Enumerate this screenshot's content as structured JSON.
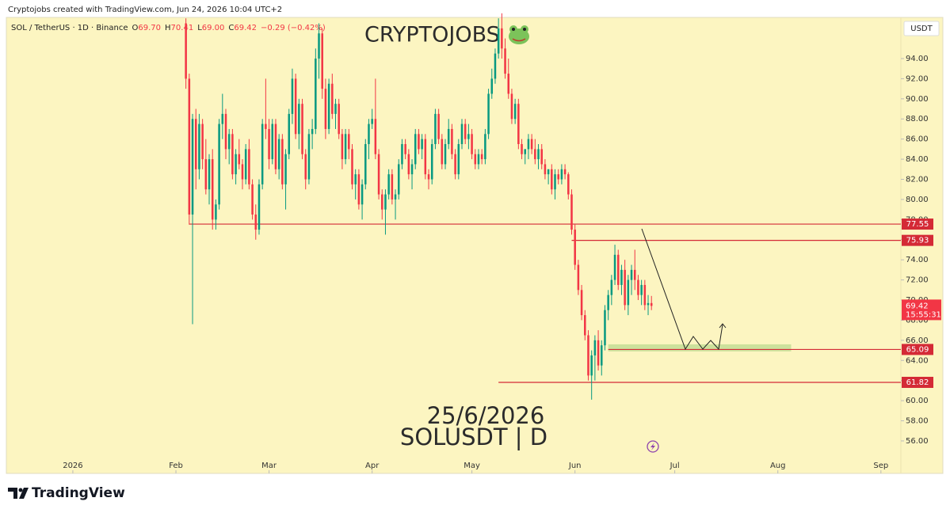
{
  "chart_data": {
    "type": "candlestick",
    "header": "Cryptojobs created with TradingView.com, Jun 24, 2026 10:04 UTC+2",
    "legend": {
      "symbol": "SOL / TetherUS · 1D · Binance",
      "fields": [
        {
          "key": "O",
          "value": "69.70"
        },
        {
          "key": "H",
          "value": "70.41"
        },
        {
          "key": "L",
          "value": "69.00"
        },
        {
          "key": "C",
          "value": "69.42"
        }
      ],
      "change": "−0.29 (−0.42%)"
    },
    "watermark": "CRYPTOJOBS",
    "date_text": "25/6/2026",
    "symbol_text": "SOLUSDT | D",
    "currency": "USDT",
    "footer": "TradingView",
    "up_color": "#089981",
    "down_color": "#f23645",
    "level_color": "#d42a36",
    "zone_color": "#b9d98c",
    "xlim": [
      "2025-12-12",
      "2026-09-07"
    ],
    "xticks": [
      {
        "value": "2026-01-01",
        "label": "2026"
      },
      {
        "value": "2026-02-01",
        "label": "Feb"
      },
      {
        "value": "2026-03-01",
        "label": "Mar"
      },
      {
        "value": "2026-04-01",
        "label": "Apr"
      },
      {
        "value": "2026-05-01",
        "label": "May"
      },
      {
        "value": "2026-06-01",
        "label": "Jun"
      },
      {
        "value": "2026-07-01",
        "label": "Jul"
      },
      {
        "value": "2026-08-01",
        "label": "Aug"
      },
      {
        "value": "2026-09-01",
        "label": "Sep"
      }
    ],
    "ylim": [
      52.77,
      98.09
    ],
    "yticks": [
      {
        "value": 56,
        "label": "56.00"
      },
      {
        "value": 58,
        "label": "58.00"
      },
      {
        "value": 60,
        "label": "60.00"
      },
      {
        "value": 62,
        "label": "62.00"
      },
      {
        "value": 64,
        "label": "64.00"
      },
      {
        "value": 66,
        "label": "66.00"
      },
      {
        "value": 68,
        "label": "68.00"
      },
      {
        "value": 70,
        "label": "70.00"
      },
      {
        "value": 72,
        "label": "72.00"
      },
      {
        "value": 74,
        "label": "74.00"
      },
      {
        "value": 76,
        "label": "76.00"
      },
      {
        "value": 78,
        "label": "78.00"
      },
      {
        "value": 80,
        "label": "80.00"
      },
      {
        "value": 82,
        "label": "82.00"
      },
      {
        "value": 84,
        "label": "84.00"
      },
      {
        "value": 86,
        "label": "86.00"
      },
      {
        "value": 88,
        "label": "88.00"
      },
      {
        "value": 90,
        "label": "90.00"
      },
      {
        "value": 92,
        "label": "92.00"
      },
      {
        "value": 94,
        "label": "94.00"
      }
    ],
    "levels": [
      {
        "value": 77.55,
        "from": "2026-02-05"
      },
      {
        "value": 75.93,
        "from": "2026-05-31"
      },
      {
        "value": 65.09,
        "from": "2026-06-11"
      },
      {
        "value": 61.82,
        "from": "2026-05-09"
      }
    ],
    "zone": {
      "low": 64.9,
      "high": 65.6,
      "from": "2026-06-11",
      "to": "2026-08-05"
    },
    "last_price": {
      "value": 69.42,
      "countdown": "15:55:31"
    },
    "ohlc": [
      [
        "2026-02-04",
        97.5,
        98,
        91,
        92
      ],
      [
        "2026-02-05",
        92,
        92.5,
        77.5,
        78.5
      ],
      [
        "2026-02-06",
        78.5,
        88.5,
        67.6,
        88
      ],
      [
        "2026-02-07",
        88,
        89,
        81,
        83
      ],
      [
        "2026-02-08",
        83,
        88.5,
        82,
        87.5
      ],
      [
        "2026-02-09",
        87.5,
        88,
        83,
        84
      ],
      [
        "2026-02-10",
        84,
        86,
        80.5,
        81
      ],
      [
        "2026-02-11",
        81,
        84.5,
        79.5,
        84
      ],
      [
        "2026-02-12",
        84,
        85,
        77,
        78
      ],
      [
        "2026-02-13",
        78,
        80,
        77,
        79.5
      ],
      [
        "2026-02-14",
        79.5,
        88,
        79,
        87.5
      ],
      [
        "2026-02-15",
        87.5,
        90.5,
        86,
        88.5
      ],
      [
        "2026-02-16",
        88.5,
        89,
        84,
        85
      ],
      [
        "2026-02-17",
        85,
        87,
        83.5,
        86.5
      ],
      [
        "2026-02-18",
        86.5,
        87,
        82,
        82.5
      ],
      [
        "2026-02-19",
        82.5,
        85,
        81.5,
        84.5
      ],
      [
        "2026-02-20",
        84.5,
        86,
        83,
        83.5
      ],
      [
        "2026-02-21",
        83.5,
        84,
        81,
        82
      ],
      [
        "2026-02-22",
        82,
        85.5,
        81.5,
        85
      ],
      [
        "2026-02-23",
        85,
        86,
        81,
        81.5
      ],
      [
        "2026-02-24",
        81.5,
        82,
        78,
        78.5
      ],
      [
        "2026-02-25",
        78.5,
        79.5,
        76,
        77
      ],
      [
        "2026-02-26",
        77,
        82,
        76.5,
        81.5
      ],
      [
        "2026-02-27",
        81.5,
        88,
        81,
        87.5
      ],
      [
        "2026-02-28",
        87.5,
        92,
        86,
        87
      ],
      [
        "2026-03-01",
        87,
        88,
        83,
        84
      ],
      [
        "2026-03-02",
        84,
        88,
        83.5,
        87.5
      ],
      [
        "2026-03-03",
        87.5,
        88,
        82.5,
        83
      ],
      [
        "2026-03-04",
        83,
        86.5,
        82,
        86
      ],
      [
        "2026-03-05",
        86,
        86.5,
        81,
        81.5
      ],
      [
        "2026-03-06",
        81.5,
        85,
        79,
        84.5
      ],
      [
        "2026-03-07",
        84.5,
        89,
        84,
        88.5
      ],
      [
        "2026-03-08",
        88.5,
        93,
        87.5,
        92
      ],
      [
        "2026-03-09",
        92,
        92.5,
        86,
        86.5
      ],
      [
        "2026-03-10",
        86.5,
        90,
        85,
        89.5
      ],
      [
        "2026-03-11",
        89.5,
        90,
        84,
        84.5
      ],
      [
        "2026-03-12",
        84.5,
        85,
        81,
        82
      ],
      [
        "2026-03-13",
        82,
        87,
        81.5,
        86.5
      ],
      [
        "2026-03-14",
        86.5,
        88,
        85,
        87
      ],
      [
        "2026-03-15",
        87,
        95,
        86.5,
        94
      ],
      [
        "2026-03-16",
        94,
        97.5,
        92,
        96.5
      ],
      [
        "2026-03-17",
        96.5,
        97,
        90,
        91
      ],
      [
        "2026-03-18",
        91,
        92,
        86,
        87
      ],
      [
        "2026-03-19",
        87,
        92,
        86.5,
        91.5
      ],
      [
        "2026-03-20",
        91.5,
        92.5,
        88,
        88.5
      ],
      [
        "2026-03-21",
        88.5,
        90,
        87,
        89.5
      ],
      [
        "2026-03-22",
        89.5,
        90,
        86,
        86.5
      ],
      [
        "2026-03-23",
        86.5,
        87,
        83,
        84
      ],
      [
        "2026-03-24",
        84,
        87,
        83.5,
        86.5
      ],
      [
        "2026-03-25",
        86.5,
        87,
        84,
        85
      ],
      [
        "2026-03-26",
        85,
        85.5,
        81,
        81.5
      ],
      [
        "2026-03-27",
        81.5,
        83,
        80,
        82.5
      ],
      [
        "2026-03-28",
        82.5,
        83,
        79,
        79.5
      ],
      [
        "2026-03-29",
        79.5,
        82,
        78,
        81.5
      ],
      [
        "2026-03-30",
        81.5,
        86,
        81,
        85.5
      ],
      [
        "2026-03-31",
        85.5,
        88,
        84,
        87.5
      ],
      [
        "2026-04-01",
        87.5,
        89,
        87,
        88
      ],
      [
        "2026-04-02",
        88,
        92,
        84,
        84.5
      ],
      [
        "2026-04-03",
        84.5,
        85,
        80,
        80.5
      ],
      [
        "2026-04-04",
        80.5,
        81,
        78,
        79
      ],
      [
        "2026-04-05",
        79,
        81,
        76.5,
        80.5
      ],
      [
        "2026-04-06",
        80.5,
        83,
        80,
        82.5
      ],
      [
        "2026-04-07",
        82.5,
        83,
        79.5,
        80
      ],
      [
        "2026-04-08",
        80,
        81,
        78,
        80.5
      ],
      [
        "2026-04-09",
        80.5,
        84,
        80,
        83.5
      ],
      [
        "2026-04-10",
        83.5,
        86,
        83,
        85.5
      ],
      [
        "2026-04-11",
        85.5,
        86,
        84,
        84.5
      ],
      [
        "2026-04-12",
        84.5,
        85,
        82,
        82.5
      ],
      [
        "2026-04-13",
        82.5,
        84,
        81,
        83.5
      ],
      [
        "2026-04-14",
        83.5,
        87,
        83,
        86.5
      ],
      [
        "2026-04-15",
        86.5,
        87,
        84.5,
        85
      ],
      [
        "2026-04-16",
        85,
        86.5,
        84,
        86
      ],
      [
        "2026-04-17",
        86,
        86.5,
        82,
        82.5
      ],
      [
        "2026-04-18",
        82.5,
        83,
        81,
        82
      ],
      [
        "2026-04-19",
        82,
        86,
        81.5,
        85.5
      ],
      [
        "2026-04-20",
        85.5,
        89,
        85,
        88.5
      ],
      [
        "2026-04-21",
        88.5,
        89,
        85.5,
        86
      ],
      [
        "2026-04-22",
        86,
        86.5,
        83,
        83.5
      ],
      [
        "2026-04-23",
        83.5,
        86,
        83,
        85.5
      ],
      [
        "2026-04-24",
        85.5,
        88,
        85,
        87
      ],
      [
        "2026-04-25",
        87,
        87.5,
        84,
        84.5
      ],
      [
        "2026-04-26",
        84.5,
        85,
        82,
        82.5
      ],
      [
        "2026-04-27",
        82.5,
        86,
        82,
        85.5
      ],
      [
        "2026-04-28",
        85.5,
        88,
        85,
        87.5
      ],
      [
        "2026-04-29",
        87.5,
        88,
        85.5,
        86
      ],
      [
        "2026-04-30",
        86,
        87.5,
        85,
        86.5
      ],
      [
        "2026-05-01",
        86.5,
        87,
        84,
        84.5
      ],
      [
        "2026-05-02",
        84.5,
        85,
        83,
        83.5
      ],
      [
        "2026-05-03",
        83.5,
        85,
        83,
        84.5
      ],
      [
        "2026-05-04",
        84.5,
        85,
        83.5,
        84
      ],
      [
        "2026-05-05",
        84,
        87,
        83.5,
        86.5
      ],
      [
        "2026-05-06",
        86.5,
        91,
        86,
        90.5
      ],
      [
        "2026-05-07",
        90.5,
        93,
        90,
        92
      ],
      [
        "2026-05-08",
        92,
        95,
        91.5,
        94.5
      ],
      [
        "2026-05-09",
        94.5,
        98,
        94,
        97
      ],
      [
        "2026-05-10",
        97,
        98.5,
        94,
        95
      ],
      [
        "2026-05-11",
        95,
        96,
        92,
        92.5
      ],
      [
        "2026-05-12",
        92.5,
        94,
        90,
        90.5
      ],
      [
        "2026-05-13",
        90.5,
        91,
        87.5,
        88
      ],
      [
        "2026-05-14",
        88,
        90,
        87.5,
        89.5
      ],
      [
        "2026-05-15",
        89.5,
        90,
        85,
        85.5
      ],
      [
        "2026-05-16",
        85.5,
        86,
        84,
        84.5
      ],
      [
        "2026-05-17",
        84.5,
        85,
        83.5,
        85
      ],
      [
        "2026-05-18",
        85,
        86.5,
        84,
        86
      ],
      [
        "2026-05-19",
        86,
        86.5,
        84.5,
        85
      ],
      [
        "2026-05-20",
        85,
        86,
        83.5,
        84
      ],
      [
        "2026-05-21",
        84,
        85.5,
        83,
        85
      ],
      [
        "2026-05-22",
        85,
        85.5,
        83,
        83.5
      ],
      [
        "2026-05-23",
        83.5,
        84,
        82,
        82.5
      ],
      [
        "2026-05-24",
        82.5,
        83,
        81.5,
        83
      ],
      [
        "2026-05-25",
        83,
        83.5,
        80.5,
        81
      ],
      [
        "2026-05-26",
        81,
        83,
        80,
        82.5
      ],
      [
        "2026-05-27",
        82.5,
        83,
        81.5,
        82
      ],
      [
        "2026-05-28",
        82,
        83.5,
        81.5,
        83
      ],
      [
        "2026-05-29",
        83,
        83.5,
        82,
        82.5
      ],
      [
        "2026-05-30",
        82.5,
        82.7,
        80,
        80.5
      ],
      [
        "2026-05-31",
        80.5,
        81,
        76.5,
        77
      ],
      [
        "2026-06-01",
        77,
        77.5,
        73,
        73.5
      ],
      [
        "2026-06-02",
        73.5,
        74,
        70.5,
        71
      ],
      [
        "2026-06-03",
        71,
        71.5,
        68,
        68.5
      ],
      [
        "2026-06-04",
        68.5,
        69,
        66,
        66.5
      ],
      [
        "2026-06-05",
        66.5,
        67,
        62,
        62.5
      ],
      [
        "2026-06-06",
        62.5,
        65,
        60.1,
        64.5
      ],
      [
        "2026-06-07",
        64.5,
        66.5,
        62,
        66
      ],
      [
        "2026-06-08",
        66,
        67,
        63,
        63.5
      ],
      [
        "2026-06-09",
        63.5,
        66,
        62.5,
        65.5
      ],
      [
        "2026-06-10",
        65.5,
        69.5,
        65,
        69
      ],
      [
        "2026-06-11",
        69,
        71,
        68,
        70.5
      ],
      [
        "2026-06-12",
        70.5,
        72.5,
        69.5,
        72
      ],
      [
        "2026-06-13",
        72,
        75.5,
        71.5,
        74.5
      ],
      [
        "2026-06-14",
        74.5,
        75,
        71,
        71.5
      ],
      [
        "2026-06-15",
        71.5,
        73.5,
        70.5,
        73
      ],
      [
        "2026-06-16",
        73,
        74,
        69,
        69.5
      ],
      [
        "2026-06-17",
        69.5,
        72.5,
        68.5,
        72
      ],
      [
        "2026-06-18",
        72,
        73.5,
        70.5,
        73
      ],
      [
        "2026-06-19",
        73,
        75,
        71,
        72
      ],
      [
        "2026-06-20",
        72,
        72.5,
        70,
        70.5
      ],
      [
        "2026-06-21",
        70.5,
        72,
        69.5,
        71.5
      ],
      [
        "2026-06-22",
        71.5,
        72,
        69,
        69.5
      ],
      [
        "2026-06-23",
        69.5,
        70.5,
        68.5,
        69.7
      ],
      [
        "2026-06-24",
        69.7,
        70.41,
        69,
        69.42
      ]
    ]
  }
}
